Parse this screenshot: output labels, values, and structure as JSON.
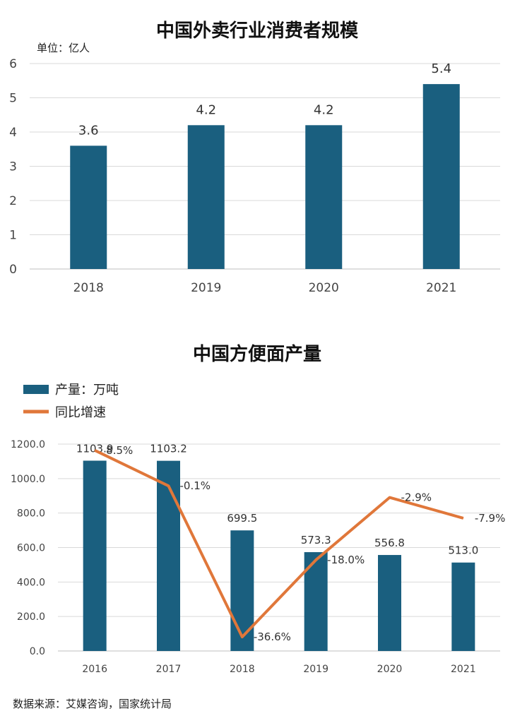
{
  "colors": {
    "bar": "#1a5f7f",
    "line": "#e0773a",
    "grid": "#d9d9d9"
  },
  "chart_data": [
    {
      "type": "bar",
      "title": "中国外卖行业消费者规模",
      "unit_label": "单位：亿人",
      "categories": [
        "2018",
        "2019",
        "2020",
        "2021"
      ],
      "values": [
        3.6,
        4.2,
        4.2,
        5.4
      ],
      "value_labels": [
        "3.6",
        "4.2",
        "4.2",
        "5.4"
      ],
      "ylim": [
        0,
        6
      ],
      "yticks": [
        "0",
        "1",
        "2",
        "3",
        "4",
        "5",
        "6"
      ],
      "grid": true
    },
    {
      "type": "bar",
      "title": "中国方便面产量",
      "categories": [
        "2016",
        "2017",
        "2018",
        "2019",
        "2020",
        "2021"
      ],
      "ylim": [
        0,
        1200
      ],
      "yticks": [
        "0.0",
        "200.0",
        "400.0",
        "600.0",
        "800.0",
        "1000.0",
        "1200.0"
      ],
      "grid": true,
      "legend_position": "top-left",
      "series": [
        {
          "name": "产量：万吨",
          "type": "bar",
          "values": [
            1103.9,
            1103.2,
            699.5,
            573.3,
            556.8,
            513.0
          ],
          "value_labels": [
            "1103.9",
            "1103.2",
            "699.5",
            "573.3",
            "556.8",
            "513.0"
          ]
        },
        {
          "name": "同比增速",
          "type": "line",
          "values": [
            8.5,
            -0.1,
            -36.6,
            -18.0,
            -2.9,
            -7.9
          ],
          "value_labels": [
            "8.5%",
            "-0.1%",
            "-36.6%",
            "-18.0%",
            "-2.9%",
            "-7.9%"
          ]
        }
      ]
    }
  ],
  "source_text": "数据来源：艾媒咨询，国家统计局"
}
